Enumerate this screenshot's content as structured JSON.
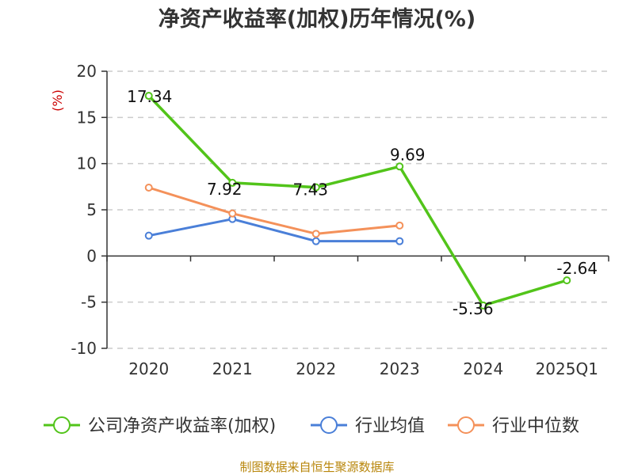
{
  "chart_data": {
    "type": "line",
    "title": "净资产收益率(加权)历年情况(%)",
    "ylabel": "(%)",
    "categories": [
      "2020",
      "2021",
      "2022",
      "2023",
      "2024",
      "2025Q1"
    ],
    "ylim": [
      -10,
      20
    ],
    "yticks": [
      20,
      15,
      10,
      5,
      0,
      -5,
      -10
    ],
    "grid": true,
    "legend_position": "bottom",
    "series": [
      {
        "name": "公司净资产收益率(加权)",
        "color": "#52c41a",
        "values": [
          17.34,
          7.92,
          7.43,
          9.69,
          -5.36,
          -2.64
        ],
        "labels": [
          "17.34",
          "7.92",
          "7.43",
          "9.69",
          "-5.36",
          "-2.64"
        ]
      },
      {
        "name": "行业均值",
        "color": "#4a7fd8",
        "values": [
          2.2,
          4.0,
          1.6,
          1.6,
          null,
          null
        ]
      },
      {
        "name": "行业中位数",
        "color": "#f4915a",
        "values": [
          7.4,
          4.6,
          2.4,
          3.3,
          null,
          null
        ]
      }
    ]
  },
  "footer": {
    "source": "制图数据来自恒生聚源数据库"
  }
}
